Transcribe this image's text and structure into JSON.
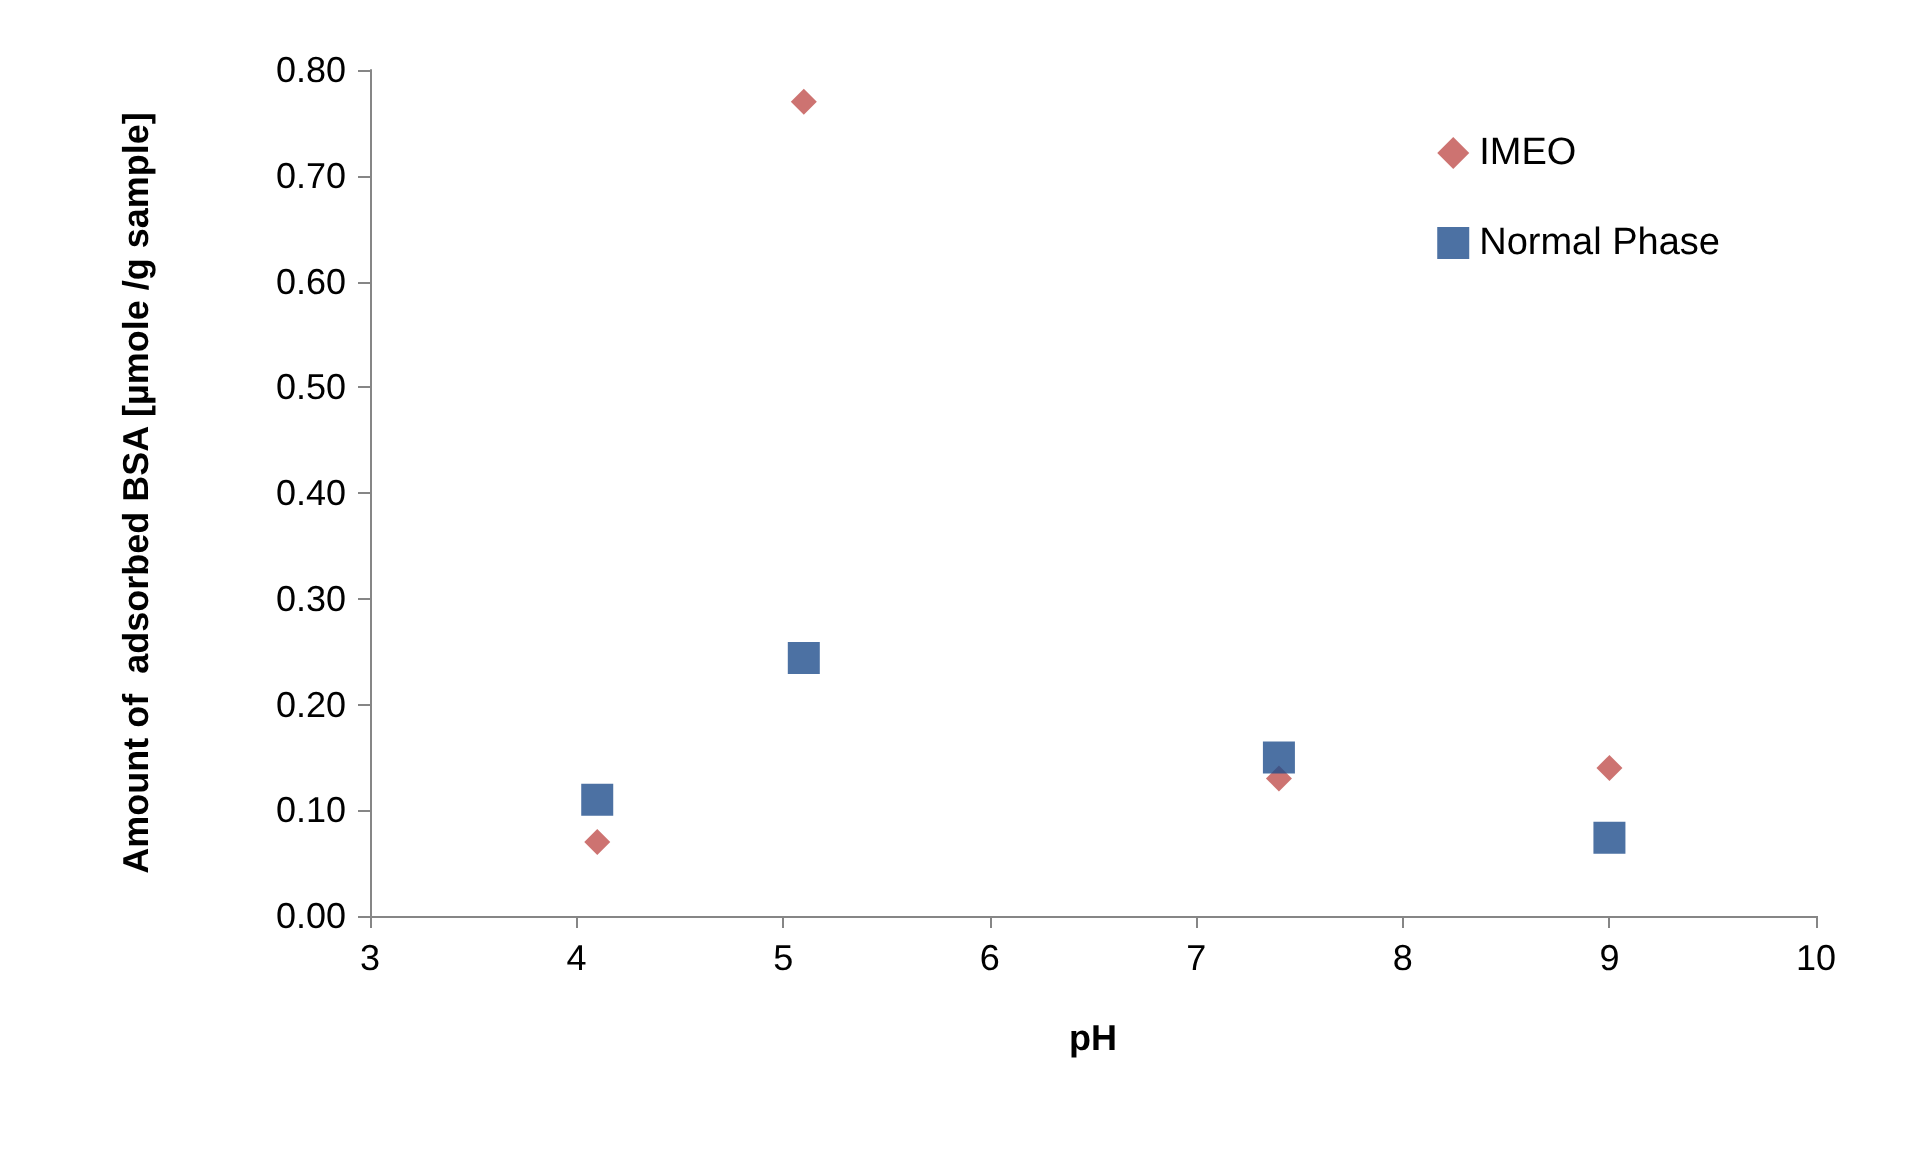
{
  "chart_data": {
    "type": "scatter",
    "xlabel": "pH",
    "ylabel": "Amount of  adsorbed BSA [µmole /g sample]",
    "xlim": [
      3,
      10
    ],
    "xticks": [
      3,
      4,
      5,
      6,
      7,
      8,
      9,
      10
    ],
    "ylim": [
      0,
      0.8
    ],
    "yticks": [
      {
        "value": 0,
        "label": "0.00"
      },
      {
        "value": 0.1,
        "label": "0.10"
      },
      {
        "value": 0.2,
        "label": "0.20"
      },
      {
        "value": 0.3,
        "label": "0.30"
      },
      {
        "value": 0.4,
        "label": "0.40"
      },
      {
        "value": 0.5,
        "label": "0.50"
      },
      {
        "value": 0.6,
        "label": "0.60"
      },
      {
        "value": 0.7,
        "label": "0.70"
      },
      {
        "value": 0.8,
        "label": "0.80"
      }
    ],
    "grid": false,
    "legend": "top right",
    "series": [
      {
        "name": "IMEO",
        "color": "#c0504d",
        "marker": "diamond",
        "x": [
          4.1,
          5.1,
          7.4,
          9
        ],
        "values": [
          0.07,
          0.77,
          0.13,
          0.14
        ]
      },
      {
        "name": "Normal Phase",
        "color": "#1f4e8c",
        "marker": "square",
        "x": [
          4.1,
          5.1,
          7.4,
          9
        ],
        "values": [
          0.11,
          0.244,
          0.15,
          0.074
        ]
      }
    ]
  }
}
